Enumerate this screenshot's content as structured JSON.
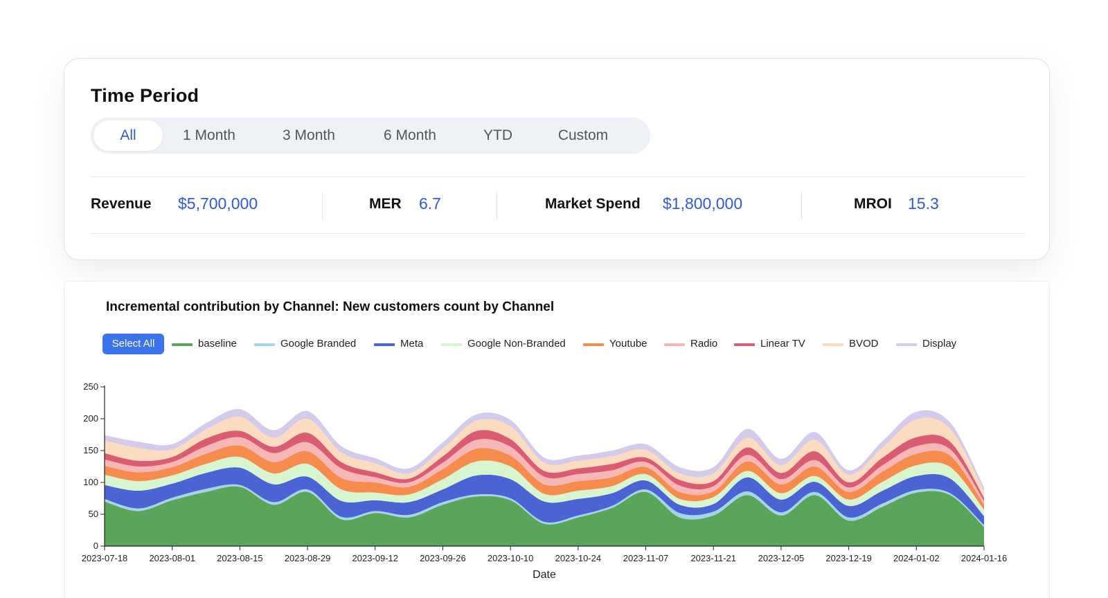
{
  "time_period": {
    "title": "Time Period",
    "tabs": [
      {
        "label": "All",
        "active": true
      },
      {
        "label": "1 Month",
        "active": false
      },
      {
        "label": "3 Month",
        "active": false
      },
      {
        "label": "6 Month",
        "active": false
      },
      {
        "label": "YTD",
        "active": false
      },
      {
        "label": "Custom",
        "active": false
      }
    ]
  },
  "metrics": [
    {
      "label": "Revenue",
      "value": "$5,700,000"
    },
    {
      "label": "MER",
      "value": "6.7"
    },
    {
      "label": "Market Spend",
      "value": "$1,800,000"
    },
    {
      "label": "MROI",
      "value": "15.3"
    }
  ],
  "chart": {
    "title": "Incremental contribution by Channel: New customers count by Channel",
    "select_all_label": "Select All"
  },
  "colors": {
    "accent": "#2f5ad6",
    "button": "#3b73ec"
  },
  "chart_data": {
    "type": "area",
    "stacked": true,
    "title": "Incremental contribution by Channel: New customers count by Channel",
    "xlabel": "Date",
    "ylabel": "",
    "ylim": [
      0,
      250
    ],
    "yticks": [
      0,
      50,
      100,
      150,
      200,
      250
    ],
    "grid": false,
    "legend_position": "top",
    "x_ticks": [
      "2023-07-18",
      "2023-08-01",
      "2023-08-15",
      "2023-08-29",
      "2023-09-12",
      "2023-09-26",
      "2023-10-10",
      "2023-10-24",
      "2023-11-07",
      "2023-11-21",
      "2023-12-05",
      "2023-12-19",
      "2024-01-02",
      "2024-01-16"
    ],
    "x": [
      "2023-07-18",
      "2023-07-25",
      "2023-08-01",
      "2023-08-08",
      "2023-08-15",
      "2023-08-22",
      "2023-08-29",
      "2023-09-05",
      "2023-09-12",
      "2023-09-19",
      "2023-09-26",
      "2023-10-03",
      "2023-10-10",
      "2023-10-17",
      "2023-10-24",
      "2023-10-31",
      "2023-11-07",
      "2023-11-14",
      "2023-11-21",
      "2023-11-28",
      "2023-12-05",
      "2023-12-12",
      "2023-12-19",
      "2023-12-26",
      "2024-01-02",
      "2024-01-09",
      "2024-01-16"
    ],
    "series": [
      {
        "name": "baseline",
        "color": "#5aa55a",
        "values": [
          70,
          55,
          72,
          85,
          93,
          65,
          85,
          42,
          52,
          45,
          65,
          78,
          72,
          35,
          45,
          60,
          85,
          45,
          48,
          80,
          48,
          80,
          40,
          62,
          84,
          80,
          30
        ]
      },
      {
        "name": "Google Branded",
        "color": "#a6d4ea",
        "values": [
          4,
          4,
          4,
          5,
          3,
          4,
          4,
          4,
          3,
          4,
          4,
          3,
          3,
          3,
          3,
          3,
          4,
          7,
          6,
          6,
          5,
          5,
          5,
          5,
          4,
          3,
          3
        ]
      },
      {
        "name": "Meta",
        "color": "#4a64d4",
        "values": [
          22,
          28,
          22,
          25,
          27,
          28,
          20,
          25,
          17,
          20,
          20,
          30,
          30,
          32,
          26,
          20,
          14,
          13,
          12,
          22,
          20,
          16,
          18,
          20,
          22,
          23,
          14
        ]
      },
      {
        "name": "Google Non-Branded",
        "color": "#d7f5cf",
        "values": [
          16,
          15,
          13,
          14,
          17,
          17,
          20,
          18,
          12,
          12,
          16,
          22,
          20,
          12,
          13,
          11,
          10,
          9,
          11,
          10,
          10,
          9,
          10,
          14,
          17,
          18,
          10
        ]
      },
      {
        "name": "Youtube",
        "color": "#f58c4d",
        "values": [
          14,
          14,
          13,
          16,
          18,
          18,
          20,
          18,
          16,
          12,
          16,
          20,
          17,
          15,
          15,
          14,
          11,
          11,
          9,
          15,
          14,
          15,
          12,
          16,
          18,
          18,
          8
        ]
      },
      {
        "name": "Radio",
        "color": "#f7b7b6",
        "values": [
          10,
          9,
          8,
          12,
          13,
          14,
          14,
          15,
          8,
          7,
          10,
          14,
          14,
          12,
          11,
          11,
          8,
          10,
          8,
          10,
          8,
          10,
          7,
          10,
          12,
          10,
          6
        ]
      },
      {
        "name": "Linear TV",
        "color": "#d95c72",
        "values": [
          10,
          9,
          8,
          12,
          10,
          10,
          15,
          10,
          8,
          6,
          10,
          14,
          12,
          9,
          9,
          10,
          7,
          9,
          8,
          12,
          10,
          14,
          8,
          12,
          14,
          12,
          5
        ]
      },
      {
        "name": "BVOD",
        "color": "#fbdcc0",
        "values": [
          20,
          20,
          12,
          14,
          22,
          14,
          22,
          15,
          14,
          8,
          12,
          16,
          20,
          13,
          12,
          12,
          12,
          10,
          12,
          15,
          12,
          18,
          12,
          16,
          28,
          20,
          10
        ]
      },
      {
        "name": "Display",
        "color": "#d4cbeb",
        "values": [
          8,
          10,
          8,
          10,
          12,
          12,
          12,
          10,
          8,
          8,
          10,
          10,
          10,
          8,
          8,
          9,
          9,
          10,
          10,
          14,
          10,
          12,
          7,
          10,
          12,
          10,
          6
        ]
      }
    ]
  }
}
